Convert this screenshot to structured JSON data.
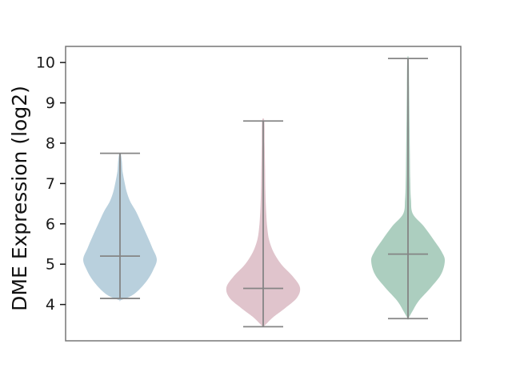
{
  "figure": {
    "background": "#ffffff"
  },
  "chart_data": {
    "type": "violin",
    "title": "",
    "xlabel": "",
    "ylabel": "DME Expression (log2)",
    "ylim": [
      3.1,
      10.4
    ],
    "yticks": [
      4,
      5,
      6,
      7,
      8,
      9,
      10
    ],
    "x_tick_labels": [
      "",
      "",
      ""
    ],
    "grid": false,
    "legend": null,
    "line_color": "#858585",
    "spine_color": "#777777",
    "text_color": "#1a1a1a",
    "violins": [
      {
        "label": "",
        "fill_color": "#b9d0dd",
        "median": 5.2,
        "whisker_low": 4.15,
        "whisker_high": 7.75,
        "density_profile": [
          [
            7.74,
            0.02
          ],
          [
            7.55,
            0.05
          ],
          [
            7.3,
            0.07
          ],
          [
            7.05,
            0.12
          ],
          [
            6.8,
            0.18
          ],
          [
            6.55,
            0.28
          ],
          [
            6.3,
            0.44
          ],
          [
            6.0,
            0.59
          ],
          [
            5.7,
            0.74
          ],
          [
            5.4,
            0.88
          ],
          [
            5.12,
            1.0
          ],
          [
            4.85,
            0.9
          ],
          [
            4.6,
            0.74
          ],
          [
            4.35,
            0.5
          ],
          [
            4.2,
            0.28
          ],
          [
            4.1,
            0.0
          ]
        ]
      },
      {
        "label": "",
        "fill_color": "#e0c4cc",
        "median": 4.4,
        "whisker_low": 3.45,
        "whisker_high": 8.55,
        "density_profile": [
          [
            8.55,
            0.03
          ],
          [
            8.0,
            0.04
          ],
          [
            7.4,
            0.05
          ],
          [
            6.8,
            0.06
          ],
          [
            6.3,
            0.08
          ],
          [
            5.9,
            0.11
          ],
          [
            5.6,
            0.16
          ],
          [
            5.3,
            0.28
          ],
          [
            5.0,
            0.49
          ],
          [
            4.7,
            0.8
          ],
          [
            4.42,
            1.0
          ],
          [
            4.16,
            0.91
          ],
          [
            3.9,
            0.58
          ],
          [
            3.7,
            0.29
          ],
          [
            3.55,
            0.12
          ],
          [
            3.44,
            0.0
          ]
        ]
      },
      {
        "label": "",
        "fill_color": "#accebf",
        "median": 5.25,
        "whisker_low": 3.65,
        "whisker_high": 10.1,
        "density_profile": [
          [
            10.08,
            0.02
          ],
          [
            9.4,
            0.03
          ],
          [
            8.6,
            0.04
          ],
          [
            7.8,
            0.05
          ],
          [
            7.1,
            0.06
          ],
          [
            6.6,
            0.08
          ],
          [
            6.25,
            0.13
          ],
          [
            5.95,
            0.42
          ],
          [
            5.6,
            0.7
          ],
          [
            5.3,
            0.92
          ],
          [
            5.08,
            1.0
          ],
          [
            4.75,
            0.9
          ],
          [
            4.42,
            0.62
          ],
          [
            4.1,
            0.3
          ],
          [
            3.85,
            0.13
          ],
          [
            3.64,
            0.0
          ]
        ]
      }
    ]
  }
}
